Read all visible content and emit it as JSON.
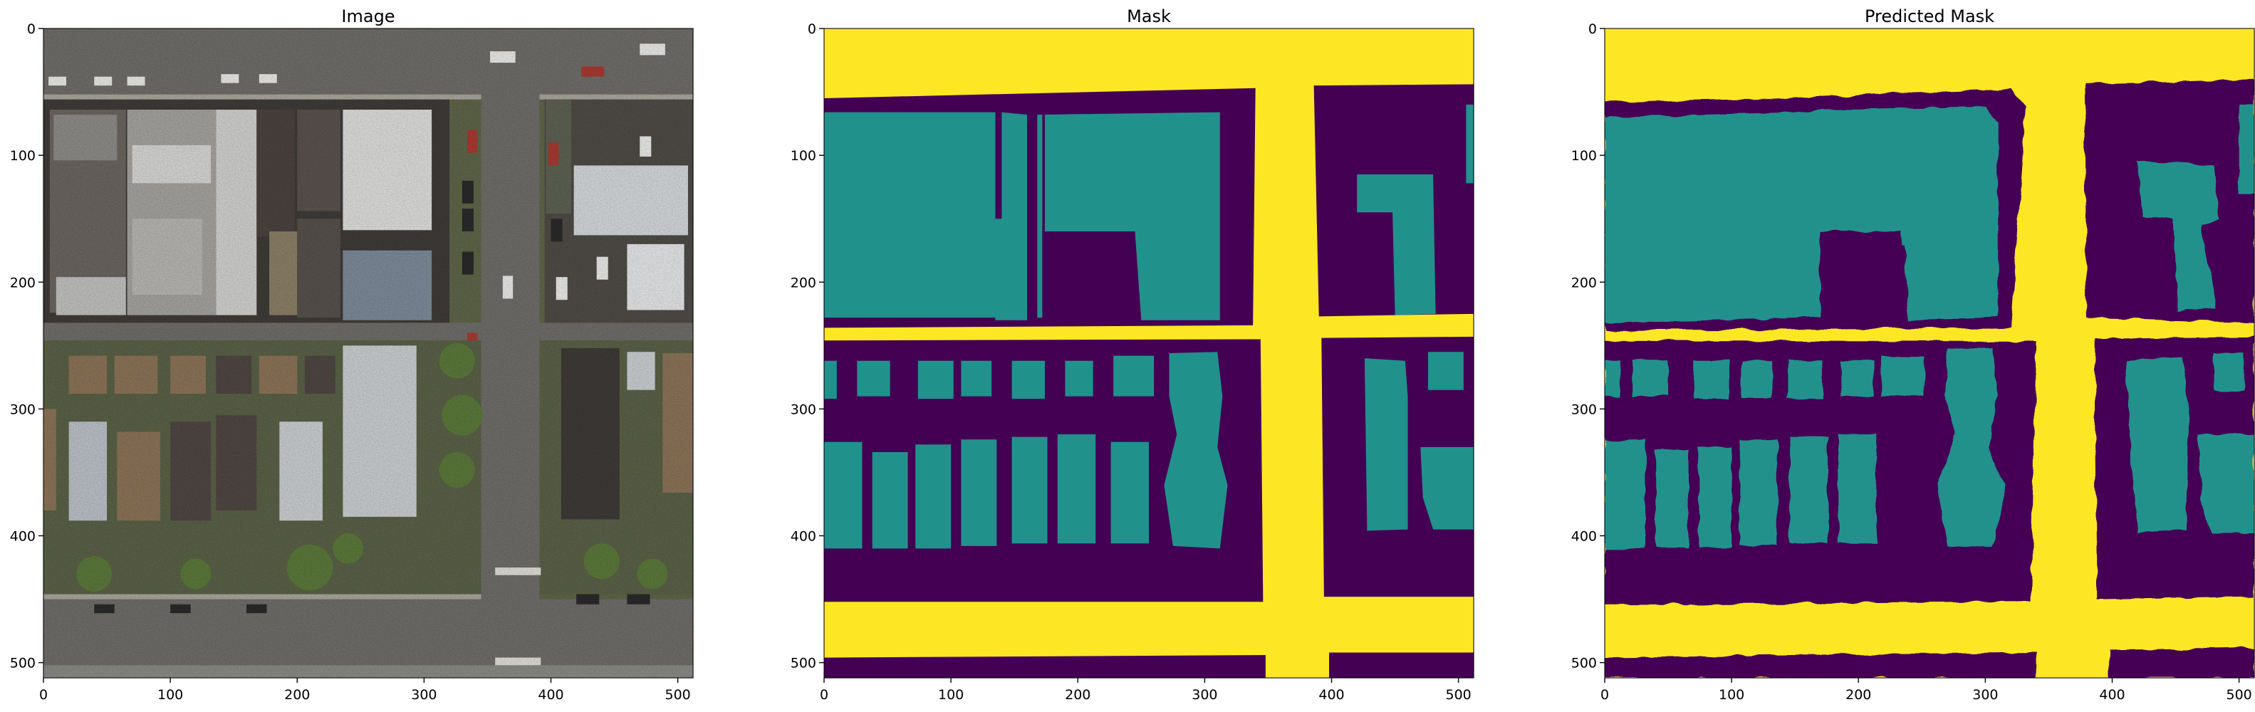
{
  "colors": {
    "mask_background": "#440154",
    "mask_road": "#fde725",
    "mask_building": "#21918c",
    "photo_road": "#6f6d69",
    "photo_block": "#5f6548",
    "photo_roof_light": "#c9cdd0",
    "photo_roof_dark": "#4f4742",
    "photo_roof_brown": "#8a7358",
    "photo_tree": "#5c7a3b"
  },
  "axes": {
    "x_ticks": [
      "0",
      "100",
      "200",
      "300",
      "400",
      "500"
    ],
    "y_ticks": [
      "0",
      "100",
      "200",
      "300",
      "400",
      "500"
    ],
    "xlim": [
      0,
      512
    ],
    "ylim": [
      512,
      0
    ]
  },
  "panels": [
    {
      "title": "Image"
    },
    {
      "title": "Mask"
    },
    {
      "title": "Predicted Mask"
    }
  ]
}
